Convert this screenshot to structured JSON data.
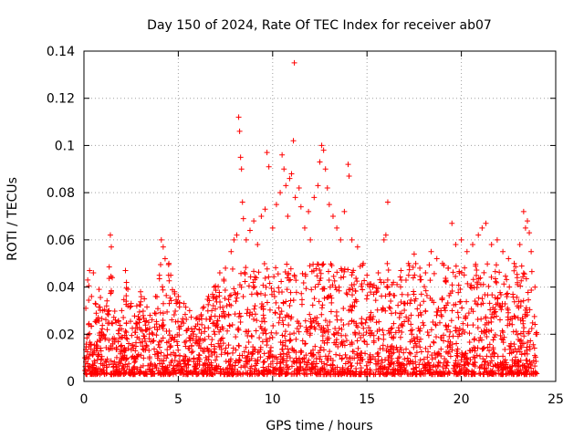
{
  "chart_data": {
    "type": "scatter",
    "title": "Day 150 of 2024, Rate Of TEC Index for receiver ab07",
    "xlabel": "GPS time / hours",
    "ylabel": "ROTI / TECUs",
    "xlim": [
      0,
      25
    ],
    "ylim": [
      0,
      0.14
    ],
    "x_ticks": [
      0,
      5,
      10,
      15,
      20,
      25
    ],
    "x_tick_labels": [
      "0",
      "5",
      "10",
      "15",
      "20",
      "25"
    ],
    "y_ticks": [
      0,
      0.02,
      0.04,
      0.06,
      0.08,
      0.1,
      0.12,
      0.14
    ],
    "y_tick_labels": [
      "0",
      "0.02",
      "0.04",
      "0.06",
      "0.08",
      "0.1",
      "0.12",
      "0.14"
    ],
    "grid": true,
    "marker": "+",
    "color": "#ff0000",
    "series": [
      {
        "points": [
          [
            0.05,
            0.01
          ],
          [
            0.1,
            0.031
          ],
          [
            0.2,
            0.043
          ],
          [
            0.3,
            0.047
          ],
          [
            0.4,
            0.036
          ],
          [
            0.5,
            0.046
          ],
          [
            0.6,
            0.033
          ],
          [
            0.8,
            0.039
          ],
          [
            1.0,
            0.03
          ],
          [
            1.2,
            0.032
          ],
          [
            1.4,
            0.062
          ],
          [
            1.45,
            0.057
          ],
          [
            1.5,
            0.044
          ],
          [
            1.7,
            0.025
          ],
          [
            2.0,
            0.03
          ],
          [
            2.2,
            0.047
          ],
          [
            2.5,
            0.033
          ],
          [
            2.8,
            0.032
          ],
          [
            3.0,
            0.038
          ],
          [
            3.2,
            0.035
          ],
          [
            3.5,
            0.028
          ],
          [
            3.8,
            0.036
          ],
          [
            4.0,
            0.045
          ],
          [
            4.1,
            0.06
          ],
          [
            4.2,
            0.057
          ],
          [
            4.3,
            0.052
          ],
          [
            4.5,
            0.05
          ],
          [
            4.6,
            0.045
          ],
          [
            4.8,
            0.038
          ],
          [
            5.0,
            0.036
          ],
          [
            5.3,
            0.033
          ],
          [
            5.6,
            0.03
          ],
          [
            6.0,
            0.027
          ],
          [
            6.3,
            0.031
          ],
          [
            6.6,
            0.036
          ],
          [
            6.9,
            0.04
          ],
          [
            7.2,
            0.046
          ],
          [
            7.5,
            0.048
          ],
          [
            7.8,
            0.055
          ],
          [
            7.95,
            0.06
          ],
          [
            8.1,
            0.062
          ],
          [
            8.2,
            0.112
          ],
          [
            8.25,
            0.106
          ],
          [
            8.3,
            0.095
          ],
          [
            8.35,
            0.09
          ],
          [
            8.4,
            0.076
          ],
          [
            8.45,
            0.069
          ],
          [
            8.6,
            0.06
          ],
          [
            8.8,
            0.064
          ],
          [
            9.0,
            0.068
          ],
          [
            9.2,
            0.058
          ],
          [
            9.4,
            0.07
          ],
          [
            9.6,
            0.073
          ],
          [
            9.7,
            0.097
          ],
          [
            9.8,
            0.091
          ],
          [
            10.0,
            0.065
          ],
          [
            10.2,
            0.075
          ],
          [
            10.4,
            0.08
          ],
          [
            10.5,
            0.096
          ],
          [
            10.6,
            0.09
          ],
          [
            10.7,
            0.083
          ],
          [
            10.8,
            0.07
          ],
          [
            10.9,
            0.086
          ],
          [
            11.0,
            0.088
          ],
          [
            11.1,
            0.102
          ],
          [
            11.15,
            0.135
          ],
          [
            11.2,
            0.078
          ],
          [
            11.4,
            0.082
          ],
          [
            11.5,
            0.074
          ],
          [
            11.7,
            0.065
          ],
          [
            11.9,
            0.072
          ],
          [
            12.0,
            0.06
          ],
          [
            12.2,
            0.078
          ],
          [
            12.4,
            0.083
          ],
          [
            12.5,
            0.093
          ],
          [
            12.6,
            0.1
          ],
          [
            12.7,
            0.098
          ],
          [
            12.8,
            0.09
          ],
          [
            12.9,
            0.082
          ],
          [
            13.0,
            0.075
          ],
          [
            13.2,
            0.07
          ],
          [
            13.4,
            0.065
          ],
          [
            13.6,
            0.06
          ],
          [
            13.8,
            0.072
          ],
          [
            14.0,
            0.092
          ],
          [
            14.05,
            0.087
          ],
          [
            14.2,
            0.06
          ],
          [
            14.5,
            0.057
          ],
          [
            14.8,
            0.05
          ],
          [
            15.0,
            0.045
          ],
          [
            15.3,
            0.04
          ],
          [
            15.6,
            0.046
          ],
          [
            15.9,
            0.06
          ],
          [
            16.0,
            0.062
          ],
          [
            16.1,
            0.076
          ],
          [
            16.4,
            0.042
          ],
          [
            16.8,
            0.047
          ],
          [
            17.2,
            0.05
          ],
          [
            17.5,
            0.054
          ],
          [
            17.8,
            0.048
          ],
          [
            18.1,
            0.046
          ],
          [
            18.4,
            0.055
          ],
          [
            18.7,
            0.052
          ],
          [
            19.0,
            0.05
          ],
          [
            19.3,
            0.048
          ],
          [
            19.5,
            0.067
          ],
          [
            19.7,
            0.058
          ],
          [
            20.0,
            0.06
          ],
          [
            20.3,
            0.055
          ],
          [
            20.6,
            0.058
          ],
          [
            20.9,
            0.062
          ],
          [
            21.1,
            0.065
          ],
          [
            21.3,
            0.067
          ],
          [
            21.6,
            0.058
          ],
          [
            21.9,
            0.06
          ],
          [
            22.2,
            0.055
          ],
          [
            22.5,
            0.052
          ],
          [
            22.8,
            0.05
          ],
          [
            23.1,
            0.058
          ],
          [
            23.3,
            0.072
          ],
          [
            23.4,
            0.065
          ],
          [
            23.5,
            0.068
          ],
          [
            23.6,
            0.063
          ],
          [
            23.7,
            0.055
          ],
          [
            23.9,
            0.04
          ],
          [
            24.0,
            0.02
          ]
        ]
      }
    ]
  }
}
